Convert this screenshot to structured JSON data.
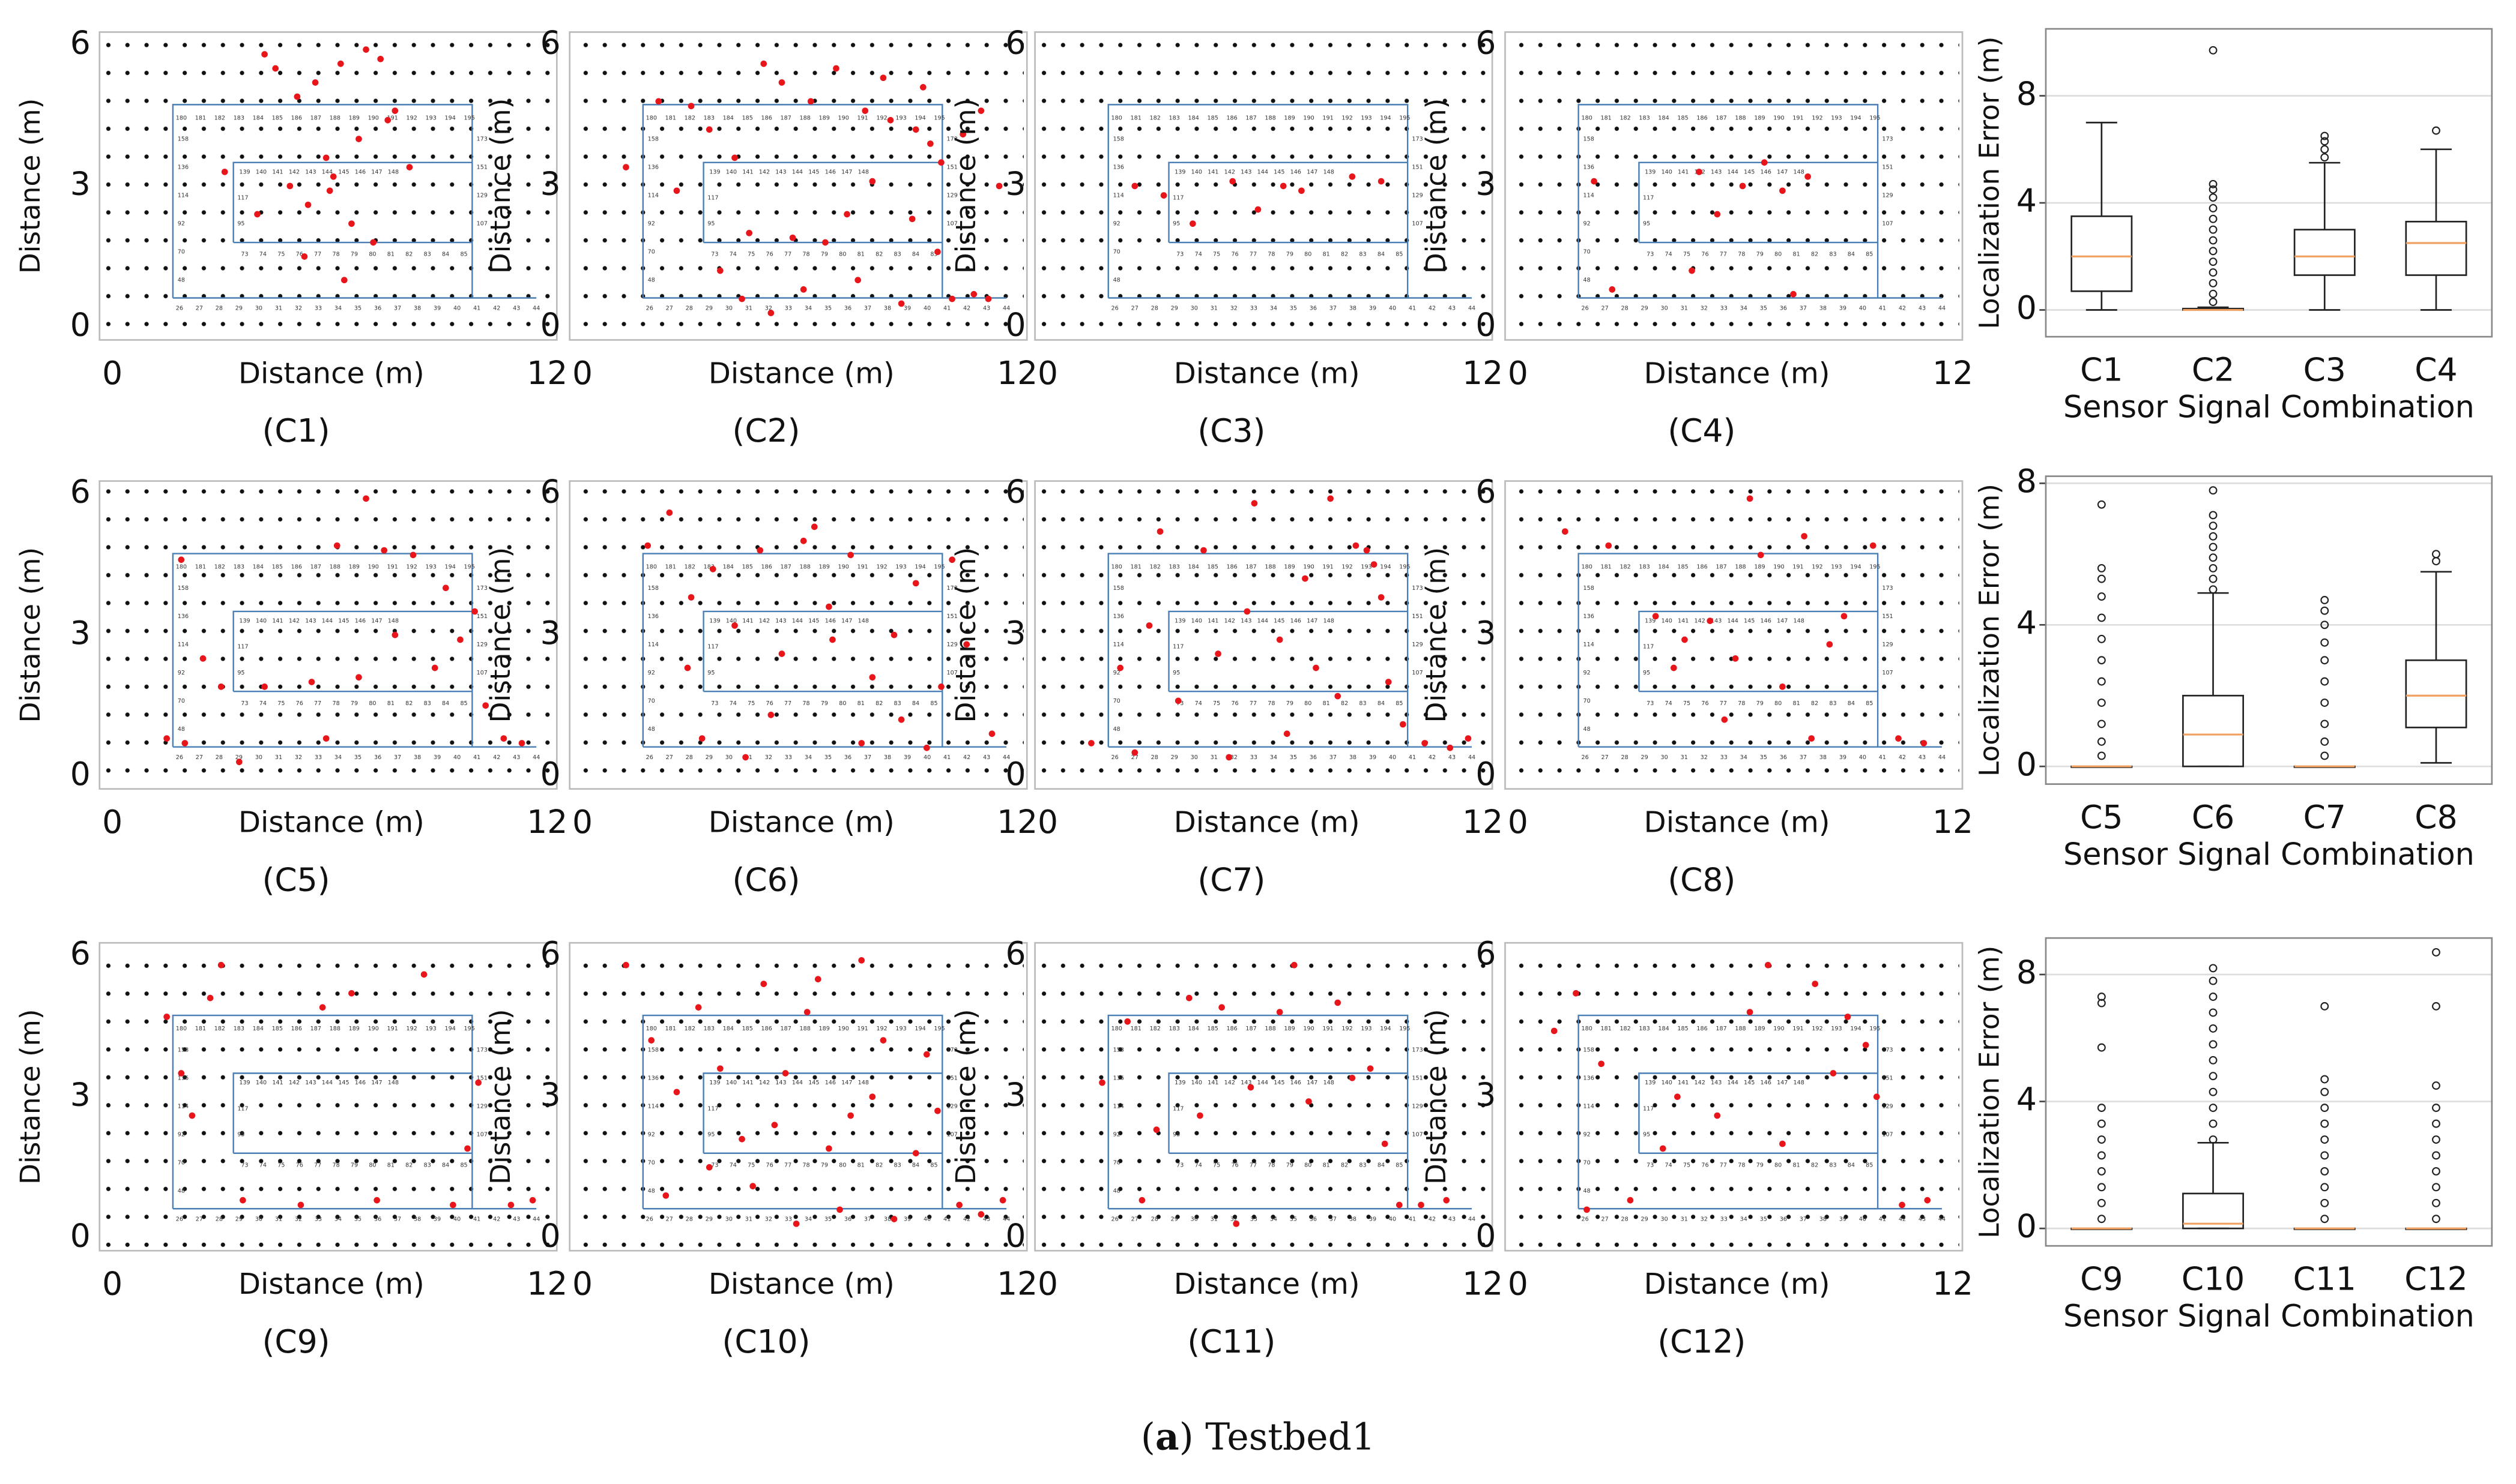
{
  "floorplan": {
    "outer_top": [
      "180",
      "181",
      "182",
      "183",
      "184",
      "185",
      "186",
      "187",
      "188",
      "189",
      "190",
      "191",
      "192",
      "193",
      "194",
      "195"
    ],
    "outer_bottom": [
      "26",
      "27",
      "28",
      "29",
      "30",
      "31",
      "32",
      "33",
      "34",
      "35",
      "36",
      "37",
      "38",
      "39",
      "40",
      "41",
      "42",
      "43",
      "44"
    ],
    "left": [
      "158",
      "136",
      "114",
      "92",
      "70",
      "48"
    ],
    "right": [
      "173",
      "151",
      "129",
      "107"
    ],
    "inner_top": [
      "139",
      "140",
      "141",
      "142",
      "143",
      "144",
      "145",
      "146",
      "147",
      "148"
    ],
    "inner_bottom": [
      "73",
      "74",
      "75",
      "76",
      "77",
      "78",
      "79",
      "80",
      "81",
      "82",
      "83",
      "84",
      "85"
    ],
    "inner_left": [
      "117",
      "95"
    ]
  },
  "caption": [
    "(",
    "a",
    ") Testbed1"
  ],
  "chart_data": [
    {
      "type": "scatter",
      "label": "(C1)",
      "xlabel": "Distance (m)",
      "ylabel": "Distance (m)",
      "xlim": [
        0,
        12
      ],
      "ylim": [
        0,
        6
      ],
      "xticks": [
        0,
        12
      ],
      "yticks": [
        0,
        3,
        6
      ],
      "color": "#e8161b",
      "x": [
        4.2,
        4.5,
        5.1,
        5.6,
        6.3,
        7.0,
        7.4,
        7.8,
        6.8,
        5.9,
        6.1,
        4.9,
        5.4,
        6.6,
        7.2,
        3.1,
        8.2,
        6.0,
        5.3,
        7.6,
        4.0,
        6.4
      ],
      "y": [
        5.8,
        5.5,
        4.9,
        5.2,
        5.6,
        5.9,
        5.7,
        4.6,
        4.0,
        3.6,
        3.2,
        3.0,
        2.6,
        2.2,
        1.8,
        3.3,
        3.4,
        2.9,
        1.5,
        4.4,
        2.4,
        1.0
      ]
    },
    {
      "type": "scatter",
      "label": "(C2)",
      "xlabel": "Distance (m)",
      "ylabel": "Distance (m)",
      "xlim": [
        0,
        12
      ],
      "ylim": [
        0,
        6
      ],
      "xticks": [
        0,
        12
      ],
      "yticks": [
        0,
        3,
        6
      ],
      "color": "#e8161b",
      "x": [
        2.1,
        3.0,
        3.5,
        4.2,
        5.0,
        5.5,
        6.3,
        7.0,
        7.8,
        8.5,
        9.2,
        9.6,
        9.9,
        10.5,
        11.0,
        11.5,
        8.0,
        7.3,
        6.7,
        5.8,
        4.6,
        3.8,
        9.1,
        9.8,
        10.2,
        8.8,
        7.6,
        6.1,
        5.2,
        4.4,
        10.8,
        11.2,
        9.4,
        8.3,
        1.2,
        2.6
      ],
      "y": [
        4.8,
        4.7,
        4.2,
        3.6,
        5.6,
        5.2,
        4.8,
        5.5,
        4.6,
        4.4,
        4.2,
        3.9,
        3.5,
        4.1,
        4.6,
        3.0,
        3.1,
        2.4,
        1.8,
        1.9,
        2.0,
        1.2,
        2.3,
        1.6,
        0.6,
        0.5,
        1.0,
        0.8,
        0.3,
        0.6,
        0.7,
        0.6,
        5.1,
        5.3,
        3.4,
        2.9
      ]
    },
    {
      "type": "scatter",
      "label": "(C3)",
      "xlabel": "Distance (m)",
      "ylabel": "Distance (m)",
      "xlim": [
        0,
        12
      ],
      "ylim": [
        0,
        6
      ],
      "xticks": [
        0,
        12
      ],
      "yticks": [
        0,
        3,
        6
      ],
      "color": "#e8161b",
      "x": [
        2.4,
        3.2,
        5.1,
        6.5,
        7.0,
        8.4,
        4.0,
        9.2,
        5.8
      ],
      "y": [
        3.0,
        2.8,
        3.1,
        3.0,
        2.9,
        3.2,
        2.2,
        3.1,
        2.5
      ]
    },
    {
      "type": "scatter",
      "label": "(C4)",
      "xlabel": "Distance (m)",
      "ylabel": "Distance (m)",
      "xlim": [
        0,
        12
      ],
      "ylim": [
        0,
        6
      ],
      "xticks": [
        0,
        12
      ],
      "yticks": [
        0,
        3,
        6
      ],
      "color": "#e8161b",
      "x": [
        2.1,
        5.0,
        6.2,
        6.8,
        7.3,
        8.0,
        4.8,
        7.6,
        5.5,
        2.6
      ],
      "y": [
        3.1,
        3.3,
        3.0,
        3.5,
        2.9,
        3.2,
        1.2,
        0.7,
        2.4,
        0.8
      ]
    },
    {
      "type": "scatter",
      "label": "(C5)",
      "xlabel": "Distance (m)",
      "ylabel": "Distance (m)",
      "xlim": [
        0,
        12
      ],
      "ylim": [
        0,
        6
      ],
      "xticks": [
        0,
        12
      ],
      "yticks": [
        0,
        3,
        6
      ],
      "color": "#e8161b",
      "x": [
        1.5,
        2.0,
        2.5,
        3.0,
        4.2,
        5.5,
        6.8,
        7.5,
        8.3,
        9.2,
        10.0,
        10.8,
        11.3,
        7.0,
        3.5,
        9.6,
        5.9,
        8.9,
        1.9,
        6.2,
        7.8,
        10.3
      ],
      "y": [
        0.8,
        0.7,
        2.5,
        1.9,
        1.9,
        2.0,
        2.1,
        4.8,
        4.7,
        4.0,
        3.5,
        0.8,
        0.7,
        5.9,
        0.3,
        2.9,
        0.8,
        2.3,
        4.6,
        4.9,
        3.0,
        1.5
      ]
    },
    {
      "type": "scatter",
      "label": "(C6)",
      "xlabel": "Distance (m)",
      "ylabel": "Distance (m)",
      "xlim": [
        0,
        12
      ],
      "ylim": [
        0,
        6
      ],
      "xticks": [
        0,
        12
      ],
      "yticks": [
        0,
        3,
        6
      ],
      "color": "#e8161b",
      "x": [
        1.8,
        2.4,
        3.0,
        3.6,
        4.2,
        4.9,
        5.5,
        6.1,
        6.8,
        7.4,
        8.0,
        8.6,
        9.2,
        9.9,
        10.6,
        11.3,
        5.2,
        6.4,
        7.7,
        3.3,
        8.8,
        4.5,
        10.2,
        2.9,
        6.9,
        9.5
      ],
      "y": [
        4.9,
        5.6,
        3.8,
        4.4,
        3.2,
        4.8,
        2.6,
        5.0,
        3.6,
        4.7,
        2.1,
        3.0,
        4.1,
        1.9,
        2.8,
        0.9,
        1.3,
        5.3,
        0.7,
        0.8,
        1.2,
        0.4,
        4.6,
        2.3,
        2.9,
        0.6
      ]
    },
    {
      "type": "scatter",
      "label": "(C7)",
      "xlabel": "Distance (m)",
      "ylabel": "Distance (m)",
      "xlim": [
        0,
        12
      ],
      "ylim": [
        0,
        6
      ],
      "xticks": [
        0,
        12
      ],
      "yticks": [
        0,
        3,
        6
      ],
      "color": "#e8161b",
      "x": [
        1.2,
        2.0,
        2.8,
        3.6,
        4.3,
        5.0,
        5.7,
        6.4,
        7.1,
        7.8,
        8.5,
        9.0,
        9.4,
        9.8,
        10.4,
        11.1,
        11.6,
        3.1,
        5.5,
        8.0,
        6.6,
        9.2,
        4.7,
        2.4,
        7.4,
        8.8
      ],
      "y": [
        0.7,
        2.3,
        3.2,
        1.6,
        4.8,
        0.4,
        5.8,
        2.9,
        4.2,
        5.9,
        4.9,
        4.5,
        2.0,
        1.1,
        0.7,
        0.6,
        0.8,
        5.2,
        3.5,
        1.7,
        0.9,
        3.8,
        2.6,
        0.5,
        2.3,
        4.8
      ]
    },
    {
      "type": "scatter",
      "label": "(C8)",
      "xlabel": "Distance (m)",
      "ylabel": "Distance (m)",
      "xlim": [
        0,
        12
      ],
      "ylim": [
        0,
        6
      ],
      "xticks": [
        0,
        12
      ],
      "yticks": [
        0,
        3,
        6
      ],
      "color": "#e8161b",
      "x": [
        1.3,
        2.5,
        3.8,
        4.6,
        5.3,
        6.0,
        6.7,
        7.3,
        8.1,
        9.0,
        9.8,
        10.5,
        5.7,
        7.9,
        4.3,
        6.4,
        11.2,
        8.6
      ],
      "y": [
        5.2,
        4.9,
        3.4,
        2.9,
        3.3,
        2.5,
        4.7,
        1.9,
        0.8,
        3.4,
        4.9,
        0.8,
        1.2,
        5.1,
        2.3,
        5.9,
        0.7,
        2.8
      ]
    },
    {
      "type": "scatter",
      "label": "(C9)",
      "xlabel": "Distance (m)",
      "ylabel": "Distance (m)",
      "xlim": [
        0,
        12
      ],
      "ylim": [
        0,
        6
      ],
      "xticks": [
        0,
        12
      ],
      "yticks": [
        0,
        3,
        6
      ],
      "color": "#e8161b",
      "x": [
        1.5,
        1.9,
        2.2,
        3.0,
        3.6,
        5.2,
        6.6,
        7.3,
        8.6,
        9.4,
        10.1,
        11.0,
        11.6,
        2.7,
        5.8,
        9.8
      ],
      "y": [
        4.7,
        3.5,
        2.6,
        5.8,
        0.8,
        0.7,
        5.2,
        0.8,
        5.6,
        0.7,
        3.3,
        0.7,
        0.8,
        5.1,
        4.9,
        1.9
      ]
    },
    {
      "type": "scatter",
      "label": "(C10)",
      "xlabel": "Distance (m)",
      "ylabel": "Distance (m)",
      "xlim": [
        0,
        12
      ],
      "ylim": [
        0,
        6
      ],
      "xticks": [
        0,
        12
      ],
      "yticks": [
        0,
        3,
        6
      ],
      "color": "#e8161b",
      "x": [
        1.2,
        1.9,
        2.6,
        3.2,
        3.8,
        4.4,
        5.0,
        5.6,
        6.2,
        6.8,
        7.4,
        8.0,
        8.6,
        9.2,
        9.8,
        10.4,
        11.0,
        11.6,
        4.7,
        5.9,
        7.1,
        8.3,
        3.5,
        6.5,
        7.7,
        2.3,
        9.5,
        5.3
      ],
      "y": [
        5.8,
        4.2,
        3.1,
        4.9,
        3.6,
        2.1,
        5.4,
        3.5,
        4.8,
        1.9,
        2.6,
        3.0,
        0.4,
        1.8,
        2.7,
        0.7,
        0.5,
        0.8,
        1.1,
        0.3,
        0.6,
        4.2,
        1.5,
        5.5,
        5.9,
        0.9,
        3.9,
        2.4
      ]
    },
    {
      "type": "scatter",
      "label": "(C11)",
      "xlabel": "Distance (m)",
      "ylabel": "Distance (m)",
      "xlim": [
        0,
        12
      ],
      "ylim": [
        0,
        6
      ],
      "xticks": [
        0,
        12
      ],
      "yticks": [
        0,
        3,
        6
      ],
      "color": "#e8161b",
      "x": [
        1.5,
        2.2,
        3.0,
        3.9,
        4.8,
        5.6,
        6.4,
        7.2,
        8.0,
        8.9,
        9.7,
        10.3,
        11.0,
        6.8,
        4.2,
        8.4,
        2.6,
        9.3,
        5.2
      ],
      "y": [
        3.3,
        4.6,
        2.3,
        5.1,
        4.9,
        3.2,
        4.8,
        2.9,
        5.0,
        3.6,
        0.7,
        0.7,
        0.8,
        5.8,
        2.6,
        3.4,
        0.8,
        2.0,
        0.3
      ]
    },
    {
      "type": "scatter",
      "label": "(C12)",
      "xlabel": "Distance (m)",
      "ylabel": "Distance (m)",
      "xlim": [
        0,
        12
      ],
      "ylim": [
        0,
        6
      ],
      "xticks": [
        0,
        12
      ],
      "yticks": [
        0,
        3,
        6
      ],
      "color": "#e8161b",
      "x": [
        1.0,
        1.6,
        2.3,
        3.1,
        4.4,
        5.5,
        6.4,
        7.3,
        8.2,
        9.1,
        9.9,
        10.6,
        11.3,
        6.9,
        4.0,
        8.7,
        1.9,
        9.6
      ],
      "y": [
        4.4,
        5.2,
        3.7,
        0.8,
        3.0,
        2.6,
        4.8,
        2.0,
        5.4,
        4.7,
        3.0,
        0.7,
        0.8,
        5.8,
        1.9,
        3.5,
        0.6,
        4.1
      ]
    },
    {
      "type": "box",
      "xlabel": "Sensor Signal Combination",
      "ylabel": "Localization Error (m)",
      "categories": [
        "C1",
        "C2",
        "C3",
        "C4"
      ],
      "ylim": [
        -1.0,
        10.5
      ],
      "yticks": [
        0,
        4,
        8
      ],
      "grid": true,
      "box_color": "#222222",
      "median_color": "#f0a060",
      "whislo": [
        0,
        0,
        0,
        0
      ],
      "q1": [
        0.7,
        0,
        1.3,
        1.3
      ],
      "median": [
        2.0,
        0,
        2.0,
        2.5
      ],
      "q3": [
        3.5,
        0.05,
        3.0,
        3.3
      ],
      "whishi": [
        7.0,
        0.1,
        5.5,
        6.0
      ],
      "fliers": [
        [],
        [
          0.3,
          0.6,
          1.0,
          1.4,
          1.8,
          2.2,
          2.6,
          3.0,
          3.4,
          3.8,
          4.2,
          4.5,
          4.7,
          9.7
        ],
        [
          5.7,
          6.0,
          6.3,
          6.5
        ],
        [
          6.7
        ]
      ]
    },
    {
      "type": "box",
      "xlabel": "Sensor Signal Combination",
      "ylabel": "Localization Error (m)",
      "categories": [
        "C5",
        "C6",
        "C7",
        "C8"
      ],
      "ylim": [
        -0.5,
        8.2
      ],
      "yticks": [
        0,
        4,
        8
      ],
      "grid": true,
      "box_color": "#222222",
      "median_color": "#f0a060",
      "whislo": [
        0,
        0,
        0,
        0.1
      ],
      "q1": [
        0,
        0,
        0,
        1.1
      ],
      "median": [
        0,
        0.9,
        0,
        2.0
      ],
      "q3": [
        0,
        2.0,
        0,
        3.0
      ],
      "whishi": [
        0,
        4.9,
        0,
        5.5
      ],
      "fliers": [
        [
          0.3,
          0.7,
          1.2,
          1.8,
          2.4,
          3.0,
          3.6,
          4.2,
          4.8,
          5.3,
          5.6,
          7.4
        ],
        [
          5.0,
          5.3,
          5.6,
          5.9,
          6.2,
          6.5,
          6.8,
          7.1,
          7.8
        ],
        [
          0.3,
          0.7,
          1.2,
          1.8,
          2.4,
          3.0,
          3.5,
          4.0,
          4.4,
          4.7
        ],
        [
          5.8,
          6.0
        ]
      ]
    },
    {
      "type": "box",
      "xlabel": "Sensor Signal Combination",
      "ylabel": "Localization Error (m)",
      "categories": [
        "C9",
        "C10",
        "C11",
        "C12"
      ],
      "ylim": [
        -0.55,
        9.15
      ],
      "yticks": [
        0,
        4,
        8
      ],
      "grid": true,
      "box_color": "#222222",
      "median_color": "#f0a060",
      "whislo": [
        0,
        0,
        0,
        0
      ],
      "q1": [
        0,
        0,
        0,
        0
      ],
      "median": [
        0,
        0.15,
        0,
        0
      ],
      "q3": [
        0,
        1.1,
        0,
        0
      ],
      "whishi": [
        0,
        2.7,
        0,
        0
      ],
      "fliers": [
        [
          0.3,
          0.8,
          1.3,
          1.8,
          2.3,
          2.8,
          3.3,
          3.8,
          5.7,
          7.1,
          7.3
        ],
        [
          2.8,
          3.3,
          3.8,
          4.3,
          4.8,
          5.3,
          5.8,
          6.3,
          6.8,
          7.3,
          7.8,
          8.2
        ],
        [
          0.3,
          0.8,
          1.3,
          1.8,
          2.3,
          2.8,
          3.3,
          3.8,
          4.3,
          4.7,
          7.0
        ],
        [
          0.3,
          0.8,
          1.3,
          1.8,
          2.3,
          2.8,
          3.3,
          3.8,
          4.5,
          7.0,
          8.7
        ]
      ]
    }
  ]
}
